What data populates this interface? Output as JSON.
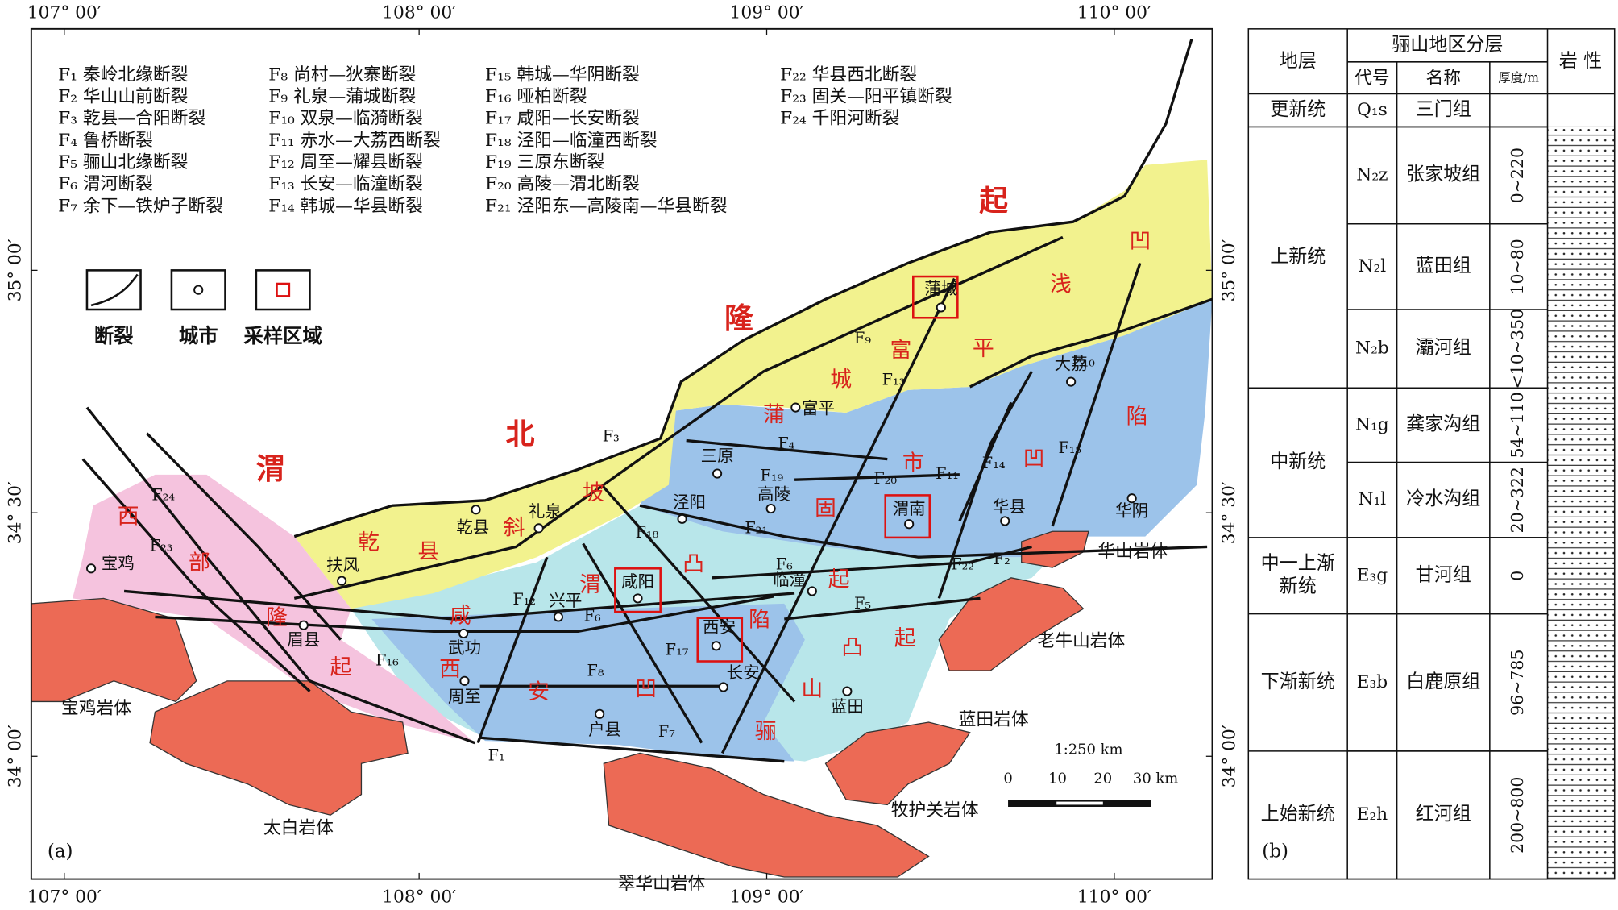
{
  "map": {
    "lon_labels": [
      "107° 00′",
      "108° 00′",
      "109° 00′",
      "110° 00′"
    ],
    "lat_labels": [
      "35° 00′",
      "34° 30′",
      "34° 00′"
    ],
    "fault_list": [
      "F₁ 秦岭北缘断裂",
      "F₂ 华山山前断裂",
      "F₃ 乾县—合阳断裂",
      "F₄ 鲁桥断裂",
      "F₅ 骊山北缘断裂",
      "F₆ 渭河断裂",
      "F₇ 余下—铁炉子断裂",
      "F₈ 尚村—狄寨断裂",
      "F₉ 礼泉—蒲城断裂",
      "F₁₀ 双泉—临漪断裂",
      "F₁₁ 赤水—大荔西断裂",
      "F₁₂ 周至—耀县断裂",
      "F₁₃ 长安—临潼断裂",
      "F₁₄ 韩城—华县断裂",
      "F₁₅ 韩城—华阴断裂",
      "F₁₆ 哑柏断裂",
      "F₁₇ 咸阳—长安断裂",
      "F₁₈ 泾阳—临潼西断裂",
      "F₁₉ 三原东断裂",
      "F₂₀ 高陵—渭北断裂",
      "F₂₁ 泾阳东—高陵南—华县断裂",
      "F₂₂ 华县西北断裂",
      "F₂₃ 固关—阳平镇断裂",
      "F₂₄ 千阳河断裂"
    ],
    "legend": [
      "断裂",
      "城市",
      "采样区域"
    ],
    "zones": [
      [
        "起",
        "隆",
        "北",
        "渭"
      ],
      [
        "凹",
        "浅",
        "平",
        "富",
        "城",
        "蒲"
      ],
      [
        "乾",
        "县",
        "斜",
        "坡"
      ],
      [
        "固",
        "市",
        "凹",
        "陷"
      ],
      [
        "西",
        "部",
        "隆",
        "起"
      ],
      [
        "咸",
        "渭",
        "凸",
        "起"
      ],
      [
        "西",
        "安",
        "凹",
        "陷"
      ],
      [
        "骊",
        "山",
        "凸",
        "起"
      ]
    ],
    "cities": [
      "蒲城",
      "富平",
      "大荔",
      "三原",
      "泾阳",
      "高陵",
      "渭南",
      "华县",
      "华阴",
      "乾县",
      "礼泉",
      "扶风",
      "宝鸡",
      "眉县",
      "武功",
      "兴平",
      "咸阳",
      "临潼",
      "西安",
      "长安",
      "周至",
      "户县",
      "蓝田"
    ],
    "fault_labels": [
      "F₉",
      "F₃",
      "F₁₃",
      "F₁₀",
      "F₄",
      "F₁₉",
      "F₂₀",
      "F₁₁",
      "F₁₄",
      "F₁₅",
      "F₂₄",
      "F₂₃",
      "F₁₈",
      "F₂₁",
      "F₆",
      "F₂₂",
      "F₂",
      "F₁₂",
      "F₆",
      "F₅",
      "F₁₆",
      "F₁₇",
      "F₈",
      "F₇",
      "F₁"
    ],
    "plutons": [
      "华山岩体",
      "老牛山岩体",
      "蓝田岩体",
      "牧护关岩体",
      "翠华山岩体",
      "太白岩体",
      "宝鸡岩体"
    ],
    "scale": {
      "ratio": "1:250 km",
      "ticks": [
        "0",
        "10",
        "20",
        "30 km"
      ]
    },
    "panel": "(a)"
  },
  "table": {
    "header": {
      "stratum": "地层",
      "region": "骊山地区分层",
      "lithology": "岩 性",
      "code": "代号",
      "name": "名称",
      "thickness": "厚度/m"
    },
    "groups": [
      {
        "series": [
          "更新统"
        ],
        "rows": [
          {
            "code": "Q₁s",
            "name": "三门组"
          }
        ]
      },
      {
        "series": [
          "上新统"
        ],
        "rows": [
          {
            "code": "N₂z",
            "name": "张家坡组",
            "thickness": "0~220"
          },
          {
            "code": "N₂l",
            "name": "蓝田组",
            "thickness": "10~80"
          },
          {
            "code": "N₂b",
            "name": "灞河组",
            "thickness": "<10~350"
          }
        ]
      },
      {
        "series": [
          "中新统"
        ],
        "rows": [
          {
            "code": "N₁g",
            "name": "龚家沟组",
            "thickness": "54~110"
          },
          {
            "code": "N₁l",
            "name": "冷水沟组",
            "thickness": "20~322"
          }
        ]
      },
      {
        "series": [
          "中一上渐",
          "新统"
        ],
        "rows": [
          {
            "code": "E₃g",
            "name": "甘河组",
            "thickness": "0"
          }
        ]
      },
      {
        "series": [
          "下渐新统"
        ],
        "rows": [
          {
            "code": "E₃b",
            "name": "白鹿原组",
            "thickness": "96~785"
          }
        ]
      },
      {
        "series": [
          "上始新统"
        ],
        "rows": [
          {
            "code": "E₂h",
            "name": "红河组",
            "thickness": "200~800"
          }
        ]
      }
    ],
    "panel": "(b)"
  }
}
